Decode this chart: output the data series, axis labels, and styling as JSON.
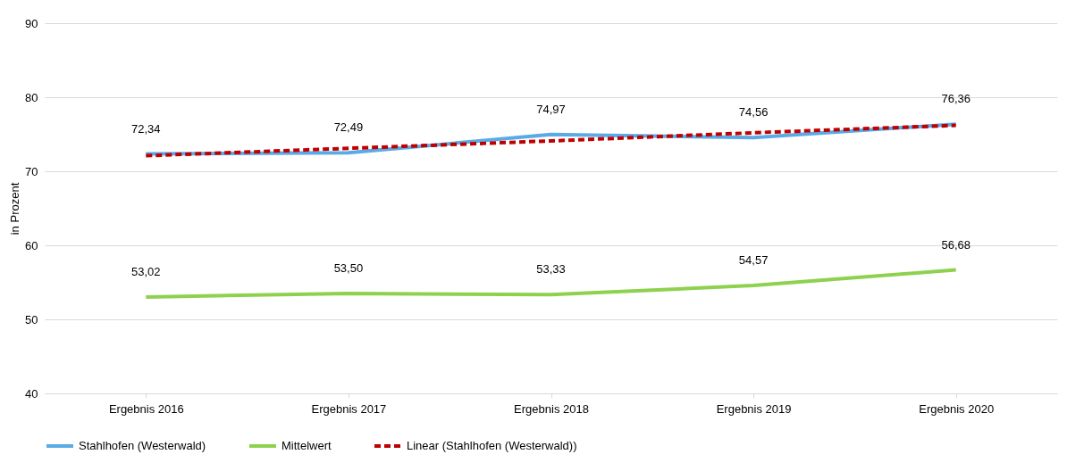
{
  "chart_data": {
    "type": "line",
    "ylabel": "in Prozent",
    "categories": [
      "Ergebnis 2016",
      "Ergebnis 2017",
      "Ergebnis 2018",
      "Ergebnis 2019",
      "Ergebnis 2020"
    ],
    "series": [
      {
        "name": "Stahlhofen (Westerwald)",
        "color": "#5aaae6",
        "values": [
          72.34,
          72.49,
          74.97,
          74.56,
          76.36
        ],
        "value_labels": [
          "72,34",
          "72,49",
          "74,97",
          "74,56",
          "76,36"
        ]
      },
      {
        "name": "Mittelwert",
        "color": "#8ed14f",
        "values": [
          53.02,
          53.5,
          53.33,
          54.57,
          56.68
        ],
        "value_labels": [
          "53,02",
          "53,50",
          "53,33",
          "54,57",
          "56,68"
        ]
      },
      {
        "name": "Linear (Stahlhofen (Westerwald))",
        "type": "line",
        "color": "#c00000",
        "line_style": "dashed",
        "values": [
          72.1,
          73.1,
          74.1,
          75.2,
          76.2
        ]
      }
    ],
    "ylim": [
      40,
      90
    ],
    "yticks": [
      40,
      50,
      60,
      70,
      80,
      90
    ],
    "grid": "y",
    "legend": "bottom"
  }
}
